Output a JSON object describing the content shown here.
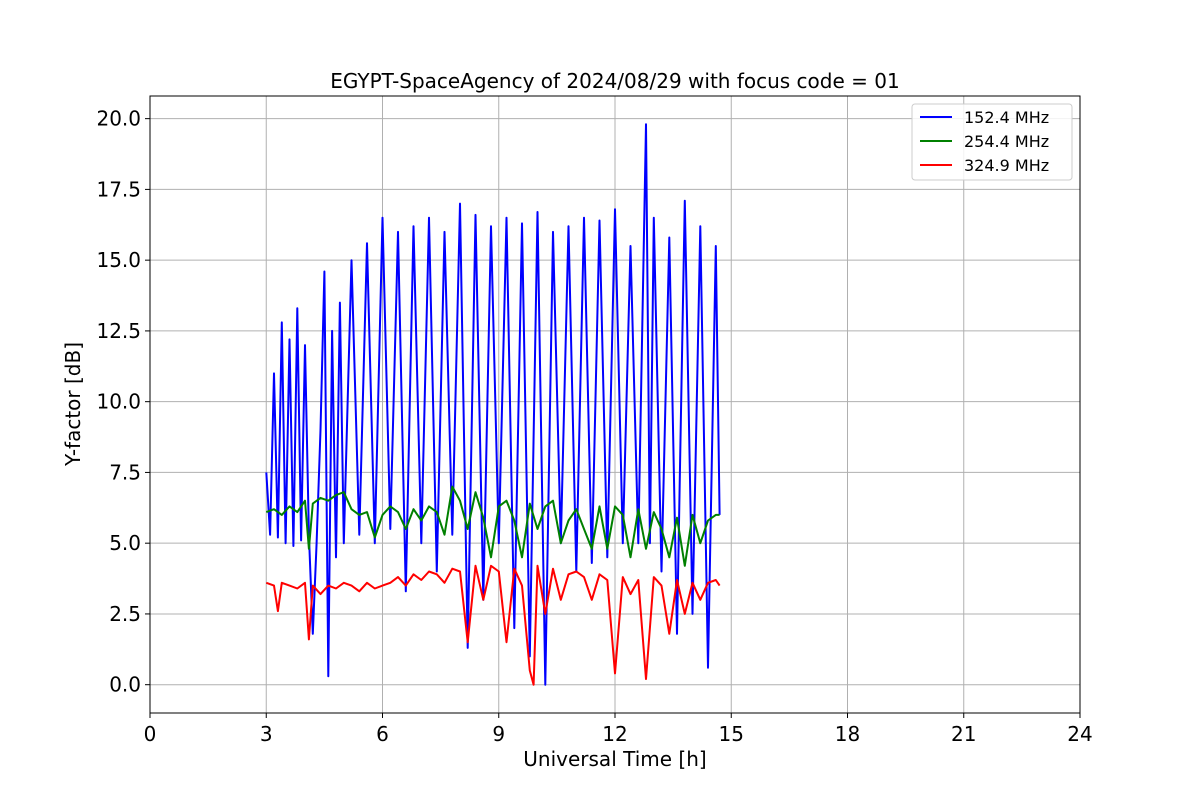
{
  "chart_data": {
    "type": "line",
    "title": "EGYPT-SpaceAgency of 2024/08/29 with focus code = 01",
    "xlabel": "Universal Time [h]",
    "ylabel": "Y-factor [dB]",
    "xlim": [
      0,
      24
    ],
    "ylim": [
      -1,
      20.8
    ],
    "xticks": [
      "0",
      "3",
      "6",
      "9",
      "12",
      "15",
      "18",
      "21",
      "24"
    ],
    "yticks": [
      "0.0",
      "2.5",
      "5.0",
      "7.5",
      "10.0",
      "12.5",
      "15.0",
      "17.5",
      "20.0"
    ],
    "grid": true,
    "legend_position": "top-right",
    "series": [
      {
        "name": " 152.4 MHz",
        "color": "#0000ff",
        "x": [
          3.0,
          3.1,
          3.2,
          3.3,
          3.4,
          3.5,
          3.6,
          3.7,
          3.8,
          3.9,
          4.0,
          4.1,
          4.2,
          4.3,
          4.4,
          4.5,
          4.6,
          4.7,
          4.8,
          4.9,
          5.0,
          5.2,
          5.4,
          5.6,
          5.8,
          6.0,
          6.2,
          6.4,
          6.6,
          6.8,
          7.0,
          7.2,
          7.4,
          7.6,
          7.8,
          8.0,
          8.2,
          8.4,
          8.6,
          8.8,
          9.0,
          9.2,
          9.4,
          9.6,
          9.8,
          10.0,
          10.2,
          10.4,
          10.6,
          10.8,
          11.0,
          11.2,
          11.4,
          11.6,
          11.8,
          12.0,
          12.2,
          12.4,
          12.6,
          12.8,
          12.9,
          13.0,
          13.2,
          13.4,
          13.6,
          13.8,
          14.0,
          14.2,
          14.4,
          14.6,
          14.7
        ],
        "y": [
          7.5,
          5.3,
          11.0,
          5.2,
          12.8,
          5.0,
          12.2,
          4.9,
          13.3,
          5.1,
          12.0,
          5.3,
          1.8,
          5.0,
          9.0,
          14.6,
          0.3,
          12.5,
          4.5,
          13.5,
          5.0,
          15.0,
          5.3,
          15.6,
          5.0,
          16.5,
          5.5,
          16.0,
          3.3,
          16.2,
          5.0,
          16.5,
          4.0,
          16.0,
          5.3,
          17.0,
          1.3,
          16.6,
          3.0,
          16.2,
          5.0,
          16.5,
          2.0,
          16.3,
          1.0,
          16.7,
          0.0,
          16.0,
          5.0,
          16.2,
          4.0,
          16.5,
          4.3,
          16.4,
          4.5,
          16.8,
          5.0,
          15.5,
          5.0,
          19.8,
          5.0,
          16.5,
          4.0,
          15.8,
          1.8,
          17.1,
          2.5,
          16.2,
          0.6,
          15.5,
          6.0
        ]
      },
      {
        "name": " 254.4 MHz",
        "color": "#008000",
        "x": [
          3.0,
          3.2,
          3.4,
          3.6,
          3.8,
          4.0,
          4.1,
          4.2,
          4.4,
          4.6,
          4.8,
          5.0,
          5.2,
          5.4,
          5.6,
          5.8,
          6.0,
          6.2,
          6.4,
          6.6,
          6.8,
          7.0,
          7.2,
          7.4,
          7.6,
          7.8,
          8.0,
          8.2,
          8.4,
          8.6,
          8.8,
          9.0,
          9.2,
          9.4,
          9.6,
          9.8,
          10.0,
          10.2,
          10.4,
          10.6,
          10.8,
          11.0,
          11.2,
          11.4,
          11.6,
          11.8,
          12.0,
          12.2,
          12.4,
          12.6,
          12.8,
          13.0,
          13.2,
          13.4,
          13.6,
          13.8,
          14.0,
          14.2,
          14.4,
          14.6,
          14.7
        ],
        "y": [
          6.1,
          6.2,
          6.0,
          6.3,
          6.1,
          6.5,
          4.8,
          6.4,
          6.6,
          6.5,
          6.7,
          6.8,
          6.2,
          6.0,
          6.1,
          5.2,
          6.0,
          6.3,
          6.1,
          5.5,
          6.2,
          5.8,
          6.3,
          6.1,
          5.3,
          7.0,
          6.5,
          5.5,
          6.8,
          5.9,
          4.5,
          6.3,
          6.5,
          5.8,
          4.5,
          6.4,
          5.5,
          6.3,
          6.5,
          5.0,
          5.8,
          6.2,
          5.5,
          4.8,
          6.3,
          4.8,
          6.3,
          6.0,
          4.5,
          6.2,
          4.8,
          6.1,
          5.5,
          4.5,
          5.9,
          4.2,
          6.0,
          5.0,
          5.8,
          6.0,
          6.0
        ]
      },
      {
        "name": " 324.9 MHz",
        "color": "#ff0000",
        "x": [
          3.0,
          3.2,
          3.3,
          3.4,
          3.6,
          3.8,
          4.0,
          4.1,
          4.2,
          4.4,
          4.6,
          4.8,
          5.0,
          5.2,
          5.4,
          5.6,
          5.8,
          6.0,
          6.2,
          6.4,
          6.6,
          6.8,
          7.0,
          7.2,
          7.4,
          7.6,
          7.8,
          8.0,
          8.2,
          8.4,
          8.6,
          8.8,
          9.0,
          9.2,
          9.4,
          9.6,
          9.8,
          9.9,
          10.0,
          10.2,
          10.4,
          10.6,
          10.8,
          11.0,
          11.2,
          11.4,
          11.6,
          11.8,
          12.0,
          12.2,
          12.4,
          12.6,
          12.8,
          13.0,
          13.2,
          13.4,
          13.6,
          13.8,
          14.0,
          14.2,
          14.4,
          14.6,
          14.7
        ],
        "y": [
          3.6,
          3.5,
          2.6,
          3.6,
          3.5,
          3.4,
          3.6,
          1.6,
          3.5,
          3.2,
          3.5,
          3.4,
          3.6,
          3.5,
          3.3,
          3.6,
          3.4,
          3.5,
          3.6,
          3.8,
          3.5,
          3.9,
          3.7,
          4.0,
          3.9,
          3.6,
          4.1,
          4.0,
          1.5,
          4.2,
          3.0,
          4.2,
          4.0,
          1.5,
          4.1,
          3.5,
          0.5,
          0.0,
          4.2,
          2.5,
          4.1,
          3.0,
          3.9,
          4.0,
          3.8,
          3.0,
          3.9,
          3.7,
          0.4,
          3.8,
          3.2,
          3.7,
          0.2,
          3.8,
          3.5,
          1.8,
          3.7,
          2.5,
          3.6,
          3.0,
          3.6,
          3.7,
          3.5
        ]
      }
    ]
  }
}
